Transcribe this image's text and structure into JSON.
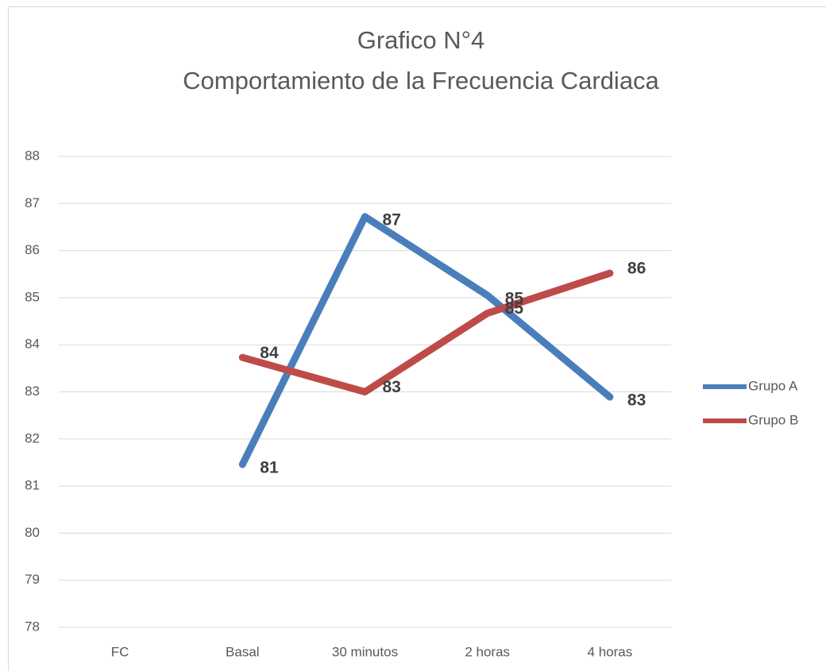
{
  "chart_data": {
    "type": "line",
    "title": "Grafico N°4",
    "subtitle": "Comportamiento de la Frecuencia Cardiaca",
    "categories": [
      "FC",
      "Basal",
      "30 minutos",
      "2 horas",
      "4 horas"
    ],
    "series": [
      {
        "name": "Grupo A",
        "color": "#4a7ebb",
        "values": [
          null,
          81.46,
          86.72,
          85.05,
          82.89
        ],
        "value_labels": [
          null,
          "81",
          "87",
          "85",
          "83"
        ]
      },
      {
        "name": "Grupo B",
        "color": "#be4b48",
        "values": [
          null,
          83.73,
          83.0,
          84.67,
          85.52
        ],
        "value_labels": [
          null,
          "84",
          "83",
          "85",
          "86"
        ]
      }
    ],
    "ylim": [
      78,
      88
    ],
    "yticks": [
      78,
      79,
      80,
      81,
      82,
      83,
      84,
      85,
      86,
      87,
      88
    ],
    "grid": true,
    "legend": "right"
  }
}
